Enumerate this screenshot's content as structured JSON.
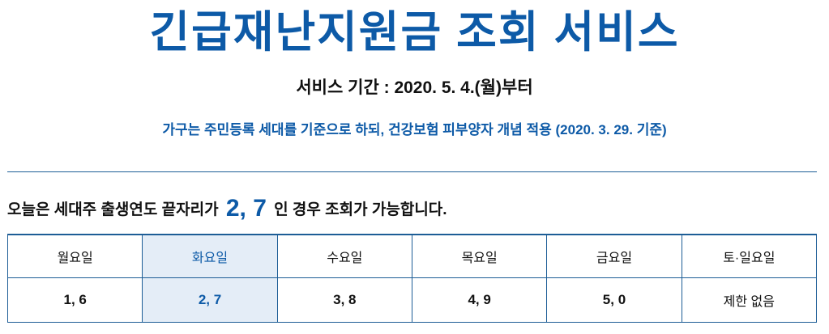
{
  "header": {
    "title": "긴급재난지원금 조회 서비스",
    "period": "서비스 기간 : 2020. 5. 4.(월)부터",
    "note": "가구는 주민등록 세대를 기준으로 하되, 건강보험 피부양자 개념 적용 (2020. 3. 29. 기준)"
  },
  "today": {
    "prefix": "오늘은 세대주 출생연도 끝자리가",
    "digits": "2, 7",
    "suffix": "인 경우 조회가 가능합니다."
  },
  "schedule": {
    "days": [
      "월요일",
      "화요일",
      "수요일",
      "목요일",
      "금요일",
      "토·일요일"
    ],
    "digits": [
      "1, 6",
      "2, 7",
      "3, 8",
      "4, 9",
      "5, 0",
      "제한 없음"
    ],
    "active_index": 1
  },
  "colors": {
    "accent": "#0d5aa7",
    "border": "#1d5d96",
    "highlight_bg": "#e4edf7"
  }
}
